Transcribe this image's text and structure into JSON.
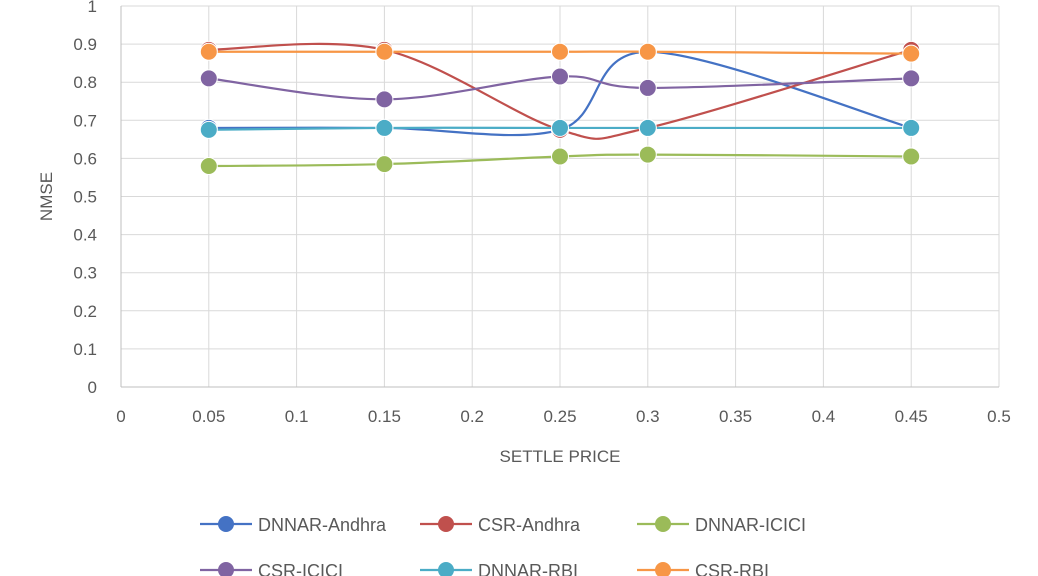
{
  "chart_data": {
    "type": "line",
    "title": "",
    "xlabel": "SETTLE PRICE",
    "ylabel": "NMSE",
    "xlim": [
      0,
      0.5
    ],
    "ylim": [
      0,
      1
    ],
    "x_ticks": [
      "0",
      "0.05",
      "0.1",
      "0.15",
      "0.2",
      "0.25",
      "0.3",
      "0.35",
      "0.4",
      "0.45",
      "0.5"
    ],
    "y_ticks": [
      "0",
      "0.1",
      "0.2",
      "0.3",
      "0.4",
      "0.5",
      "0.6",
      "0.7",
      "0.8",
      "0.9",
      "1"
    ],
    "x": [
      0.05,
      0.15,
      0.25,
      0.3,
      0.45
    ],
    "grid": true,
    "smoothed": true,
    "legend_position": "bottom",
    "series": [
      {
        "name": "DNNAR-Andhra",
        "color": "#4472C4",
        "values": [
          0.68,
          0.68,
          0.675,
          0.88,
          0.68
        ]
      },
      {
        "name": "CSR-Andhra",
        "color": "#C0504D",
        "values": [
          0.885,
          0.885,
          0.675,
          0.68,
          0.885
        ]
      },
      {
        "name": "DNNAR-ICICI",
        "color": "#9BBB59",
        "values": [
          0.58,
          0.585,
          0.605,
          0.61,
          0.605
        ]
      },
      {
        "name": "CSR-ICICI",
        "color": "#8064A2",
        "values": [
          0.81,
          0.755,
          0.815,
          0.785,
          0.81
        ]
      },
      {
        "name": "DNNAR-RBI",
        "color": "#4BACC6",
        "values": [
          0.675,
          0.68,
          0.68,
          0.68,
          0.68
        ]
      },
      {
        "name": "CSR-RBI",
        "color": "#F79646",
        "values": [
          0.88,
          0.88,
          0.88,
          0.88,
          0.875
        ]
      }
    ]
  }
}
